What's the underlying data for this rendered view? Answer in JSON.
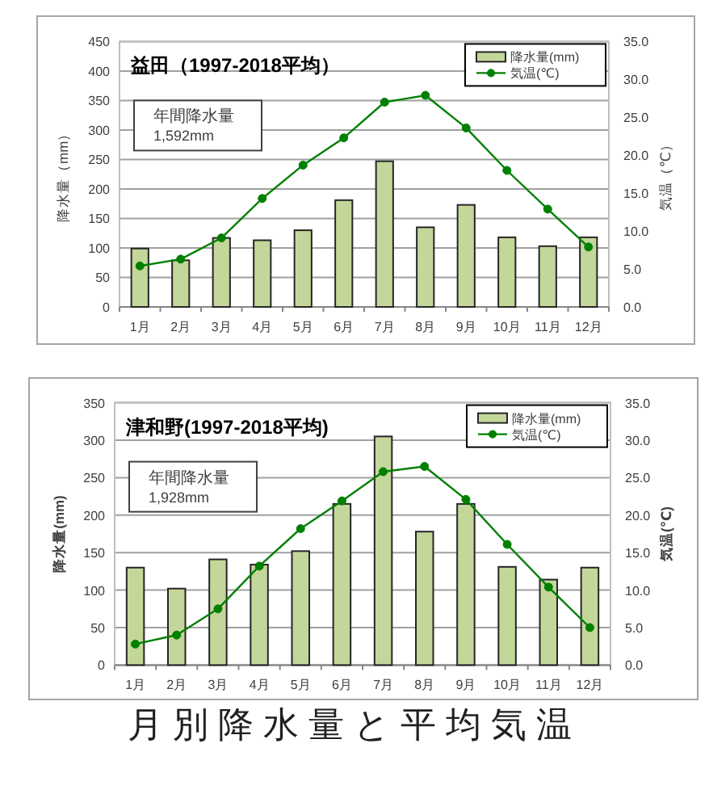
{
  "chart_data": [
    {
      "type": "bar",
      "title": "益田（1997-2018平均）",
      "ylabel": "降水量（mm）",
      "y2label": "気温（℃）",
      "annotations": [
        "年間降水量\n1,592mm"
      ],
      "categories": [
        "1月",
        "2月",
        "3月",
        "4月",
        "5月",
        "6月",
        "7月",
        "8月",
        "9月",
        "10月",
        "11月",
        "12月"
      ],
      "series": [
        {
          "name": "降水量(mm)",
          "type": "bar",
          "color": "#c4d79b",
          "values": [
            99,
            79,
            117,
            113,
            130,
            181,
            247,
            135,
            173,
            118,
            103,
            118
          ]
        },
        {
          "name": "気温(℃)",
          "type": "line",
          "axis": "y2",
          "color": "#008000",
          "values": [
            5.4,
            6.3,
            9.1,
            14.3,
            18.7,
            22.3,
            27.0,
            27.9,
            23.6,
            18.0,
            12.9,
            7.9
          ]
        }
      ],
      "ylim": [
        0,
        450
      ],
      "yticks": [
        0,
        50,
        100,
        150,
        200,
        250,
        300,
        350,
        400,
        450
      ],
      "y2lim": [
        0,
        35
      ],
      "y2ticks": [
        {
          "value": 0,
          "label": "0.0"
        },
        {
          "value": 5,
          "label": "5.0"
        },
        {
          "value": 10,
          "label": "10.0"
        },
        {
          "value": 15,
          "label": "15.0"
        },
        {
          "value": 20,
          "label": "20.0"
        },
        {
          "value": 25,
          "label": "25.0"
        },
        {
          "value": 30,
          "label": "30.0"
        },
        {
          "value": 35,
          "label": "35.0"
        }
      ],
      "grid": "y",
      "legend": "top right",
      "marker": "circle",
      "line_style": "solid"
    },
    {
      "type": "bar",
      "title": "津和野(1997-2018平均)",
      "ylabel": "降水量(mm)",
      "y2label": "気温(℃)",
      "annotations": [
        "年間降水量\n1,928mm",
        "月別降水量と平均気温"
      ],
      "categories": [
        "1月",
        "2月",
        "3月",
        "4月",
        "5月",
        "6月",
        "7月",
        "8月",
        "9月",
        "10月",
        "11月",
        "12月"
      ],
      "series": [
        {
          "name": "降水量(mm)",
          "type": "bar",
          "color": "#c4d79b",
          "values": [
            130,
            102,
            141,
            134,
            152,
            215,
            305,
            178,
            215,
            131,
            114,
            130
          ]
        },
        {
          "name": "気温(℃)",
          "type": "line",
          "axis": "y2",
          "color": "#008000",
          "values": [
            2.8,
            4.0,
            7.5,
            13.2,
            18.2,
            21.9,
            25.8,
            26.5,
            22.1,
            16.1,
            10.4,
            5.0
          ]
        }
      ],
      "ylim": [
        0,
        350
      ],
      "yticks": [
        0,
        50,
        100,
        150,
        200,
        250,
        300,
        350
      ],
      "y2lim": [
        0,
        35
      ],
      "y2ticks": [
        {
          "value": 0,
          "label": "0.0"
        },
        {
          "value": 5,
          "label": "5.0"
        },
        {
          "value": 10,
          "label": "10.0"
        },
        {
          "value": 15,
          "label": "15.0"
        },
        {
          "value": 20,
          "label": "20.0"
        },
        {
          "value": 25,
          "label": "25.0"
        },
        {
          "value": 30,
          "label": "30.0"
        },
        {
          "value": 35,
          "label": "35.0"
        }
      ],
      "grid": "y",
      "legend": "top right",
      "marker": "circle",
      "line_style": "solid"
    }
  ]
}
